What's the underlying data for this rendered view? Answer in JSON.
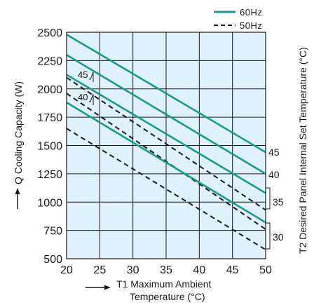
{
  "chart_data": {
    "type": "line",
    "xlabel_line1": "T1 Maximum Ambient",
    "xlabel_line2": "Temperature (°C)",
    "ylabel": "Q Cooling Capacity (W)",
    "right_label": "T2 Desired Panel Internal Set Temperature (°C)",
    "xlim": [
      20,
      50
    ],
    "ylim": [
      500,
      2500
    ],
    "x_ticks": [
      "20",
      "25",
      "30",
      "35",
      "40",
      "45",
      "50"
    ],
    "y_ticks": [
      "500",
      "750",
      "1000",
      "1250",
      "1500",
      "1750",
      "2000",
      "2250",
      "2500"
    ],
    "grid": true,
    "legend_placement": "top-right",
    "legend": [
      {
        "label": "60Hz",
        "style": "solid",
        "color": "#1a9a8e"
      },
      {
        "label": "50Hz",
        "style": "dashed",
        "color": "#1a1a1a"
      }
    ],
    "colors": {
      "background": "#dff1fb",
      "grid": "#1a1a1a",
      "solid": "#1a9a8e",
      "dashed": "#1a1a1a"
    },
    "series": [
      {
        "freq": "60Hz",
        "t2": "45",
        "x": [
          20,
          50
        ],
        "y": [
          2480,
          1440
        ]
      },
      {
        "freq": "60Hz",
        "t2": "40",
        "x": [
          20,
          50
        ],
        "y": [
          2300,
          1250
        ]
      },
      {
        "freq": "60Hz",
        "t2": "35",
        "x": [
          20,
          50
        ],
        "y": [
          2125,
          1080
        ]
      },
      {
        "freq": "60Hz",
        "t2": "30",
        "x": [
          20,
          50
        ],
        "y": [
          1880,
          820
        ]
      },
      {
        "freq": "50Hz",
        "t2": "45",
        "x": [
          20,
          50
        ],
        "y": [
          2300,
          1250
        ]
      },
      {
        "freq": "50Hz",
        "t2": "40",
        "x": [
          20,
          50
        ],
        "y": [
          2100,
          930
        ]
      },
      {
        "freq": "50Hz",
        "t2": "35",
        "x": [
          20,
          50
        ],
        "y": [
          1960,
          760
        ]
      },
      {
        "freq": "50Hz",
        "t2": "30",
        "x": [
          20,
          50
        ],
        "y": [
          1650,
          580
        ]
      }
    ],
    "right_labels": [
      "45",
      "40",
      "35",
      "30"
    ],
    "inline_labels": [
      "45",
      "40"
    ]
  }
}
